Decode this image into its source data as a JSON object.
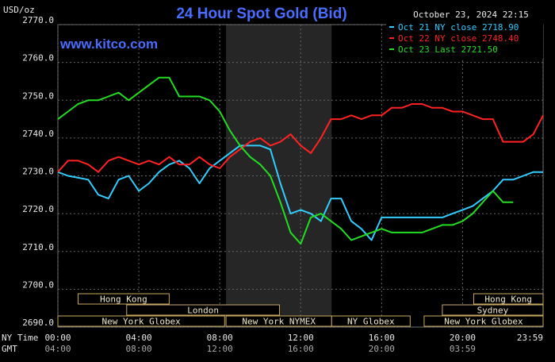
{
  "chart_data": {
    "type": "line",
    "title": "24 Hour Spot Gold (Bid)",
    "subtitle": "www.kitco.com",
    "y_label": "USD/oz",
    "timestamp": "October 23, 2024 22:15",
    "x_label": "NY Time",
    "x2_label": "GMT",
    "x": [
      0,
      0.5,
      1,
      1.5,
      2,
      2.5,
      3,
      3.5,
      4,
      4.5,
      5,
      5.5,
      6,
      6.5,
      7,
      7.5,
      8,
      8.5,
      9,
      9.5,
      10,
      10.5,
      11,
      11.5,
      12,
      12.5,
      13,
      13.5,
      14,
      14.5,
      15,
      15.5,
      16,
      16.5,
      17,
      17.5,
      18,
      18.5,
      19,
      19.5,
      20,
      20.5,
      21,
      21.5,
      22,
      22.5,
      23,
      23.5,
      23.98
    ],
    "xlim": [
      0,
      23.98
    ],
    "xticks": [
      {
        "value": 0,
        "label": "00:00"
      },
      {
        "value": 4,
        "label": "04:00"
      },
      {
        "value": 8,
        "label": "08:00"
      },
      {
        "value": 12,
        "label": "12:00"
      },
      {
        "value": 16,
        "label": "16:00"
      },
      {
        "value": 20,
        "label": "20:00"
      },
      {
        "value": 23.98,
        "label": "23:59"
      }
    ],
    "x2ticks": [
      "04:00",
      "08:00",
      "12:00",
      "16:00",
      "20:00",
      "03:59"
    ],
    "ylim": [
      2690,
      2770
    ],
    "yticks": [
      {
        "value": 2690,
        "label": "2690.0"
      },
      {
        "value": 2700,
        "label": "2700.0"
      },
      {
        "value": 2710,
        "label": "2710.0"
      },
      {
        "value": 2720,
        "label": "2720.0"
      },
      {
        "value": 2730,
        "label": "2730.0"
      },
      {
        "value": 2740,
        "label": "2740.0"
      },
      {
        "value": 2750,
        "label": "2750.0"
      },
      {
        "value": 2760,
        "label": "2760.0"
      },
      {
        "value": 2770,
        "label": "2770.0"
      }
    ],
    "grid": true,
    "series": [
      {
        "name": "Oct 21 NY close 2718.90",
        "color": "#33ccff",
        "values": [
          2731,
          2730,
          2729.5,
          2729,
          2725,
          2724,
          2729,
          2730,
          2726,
          2728,
          2731,
          2733,
          2734,
          2732,
          2728,
          2732,
          2734,
          2736,
          2738,
          2738,
          2738,
          2737,
          2728,
          2720,
          2721,
          2720,
          2718,
          2724,
          2724,
          2718,
          2716,
          2713,
          2719,
          2719,
          2719,
          2719,
          2719,
          2719,
          2719,
          2720,
          2721,
          2722,
          2724,
          2726,
          2729,
          2729,
          2730,
          2731,
          2731
        ]
      },
      {
        "name": "Oct 22 NY close 2748.40",
        "color": "#ff2222",
        "values": [
          2731,
          2734,
          2734,
          2733,
          2731,
          2734,
          2735,
          2734,
          2733,
          2734,
          2733,
          2735,
          2733,
          2733,
          2735,
          2733,
          2732,
          2735,
          2737,
          2739,
          2740,
          2738,
          2739,
          2741,
          2738,
          2736,
          2740,
          2745,
          2745,
          2746,
          2745,
          2746,
          2746,
          2748,
          2748,
          2749,
          2749,
          2748,
          2748,
          2747,
          2747,
          2746,
          2745,
          2745,
          2739,
          2739,
          2739,
          2741,
          2746
        ]
      },
      {
        "name": "Oct 23 Last 2721.50",
        "color": "#22dd22",
        "values": [
          2745,
          2747,
          2749,
          2750,
          2750,
          2751,
          2752,
          2750,
          2752,
          2754,
          2756,
          2756,
          2751,
          2751,
          2751,
          2750,
          2747,
          2742,
          2738,
          2735,
          2733,
          2730,
          2723,
          2715,
          2712,
          2719,
          2720,
          2718,
          2716,
          2713,
          2714,
          2715,
          2716,
          2715,
          2715,
          2715,
          2715,
          2716,
          2717,
          2717,
          2718,
          2720,
          2723,
          2726,
          2723,
          2723,
          null,
          null,
          null
        ]
      }
    ],
    "sessions": [
      {
        "name": "Hong Kong",
        "start": 1.0,
        "end": 5.5
      },
      {
        "name": "London",
        "start": 3.4,
        "end": 10.95
      },
      {
        "name": "New York Globex",
        "start": 0,
        "end": 8.24
      },
      {
        "name": "New York NYMEX",
        "start": 8.31,
        "end": 13.53,
        "shaded": true
      },
      {
        "name": "NY Globex",
        "start": 13.53,
        "end": 17.41
      },
      {
        "name": "Hong Kong",
        "start": 20.55,
        "end": 23.98
      },
      {
        "name": "Sydney",
        "start": 19.0,
        "end": 23.98
      },
      {
        "name": "New York Globex",
        "start": 18.1,
        "end": 23.98
      }
    ]
  }
}
